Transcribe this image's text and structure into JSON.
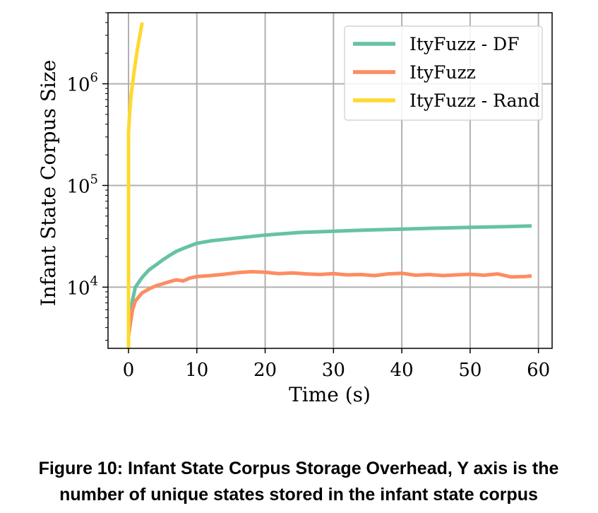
{
  "chart_data": {
    "type": "line",
    "xlabel": "Time (s)",
    "ylabel": "Infant State Corpus Size",
    "yscale": "log",
    "xlim": [
      -3,
      62
    ],
    "ylim": [
      2500,
      5000000
    ],
    "grid": true,
    "legend_position": "top-right",
    "x_ticks": [
      0,
      10,
      20,
      30,
      40,
      50,
      60
    ],
    "y_ticks": [
      {
        "value": 10000,
        "label": "10",
        "exp": "4"
      },
      {
        "value": 100000,
        "label": "10",
        "exp": "5"
      },
      {
        "value": 1000000,
        "label": "10",
        "exp": "6"
      }
    ],
    "series": [
      {
        "name": "ItyFuzz - DF",
        "color": "#66c2a5",
        "x": [
          0,
          0.3,
          0.6,
          1,
          2,
          3,
          4,
          5,
          6,
          7,
          8,
          9,
          10,
          12,
          14,
          16,
          18,
          20,
          25,
          30,
          35,
          40,
          45,
          50,
          55,
          59
        ],
        "y": [
          3500,
          5500,
          7500,
          10000,
          12500,
          14800,
          16500,
          18500,
          20500,
          22500,
          24000,
          25500,
          27000,
          28500,
          29500,
          30500,
          31500,
          32500,
          34500,
          35500,
          36500,
          37200,
          38000,
          38700,
          39300,
          40000
        ]
      },
      {
        "name": "ItyFuzz",
        "color": "#fc8d62",
        "x": [
          0,
          0.3,
          0.6,
          1,
          2,
          3,
          4,
          5,
          6,
          7,
          8,
          9,
          10,
          12,
          14,
          16,
          18,
          20,
          22,
          24,
          26,
          28,
          30,
          32,
          34,
          36,
          38,
          40,
          42,
          44,
          46,
          48,
          50,
          52,
          54,
          56,
          58,
          59
        ],
        "y": [
          3300,
          4500,
          6000,
          7300,
          8800,
          9600,
          10300,
          10800,
          11300,
          11800,
          11500,
          12300,
          12700,
          13000,
          13400,
          13900,
          14200,
          14000,
          13600,
          13800,
          13500,
          13300,
          13600,
          13200,
          13300,
          13000,
          13500,
          13700,
          13100,
          13300,
          13000,
          13200,
          13400,
          13100,
          13500,
          12600,
          12700,
          12900
        ]
      },
      {
        "name": "ItyFuzz - Rand",
        "color": "#ffd92f",
        "x": [
          0,
          0,
          0.15,
          0.4,
          0.8,
          1.3,
          2
        ],
        "y": [
          2500,
          330000,
          500000,
          800000,
          1300000,
          2200000,
          4000000
        ]
      }
    ]
  },
  "caption": "Figure 10: Infant State Corpus Storage Overhead, Y axis is the number of unique states stored in the infant state corpus"
}
